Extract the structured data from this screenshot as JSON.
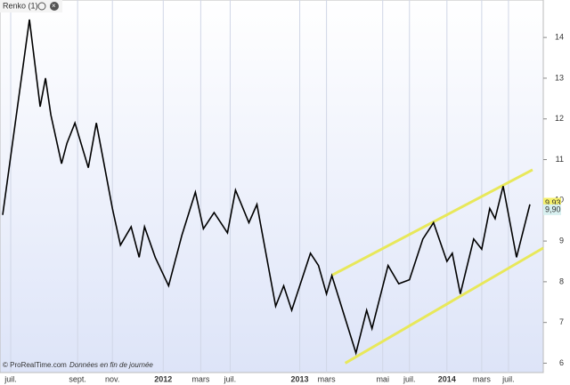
{
  "chart_data": {
    "type": "line",
    "title": "Renko (1)",
    "footer": "© ProRealTime.com",
    "footer_note": "Données en fin de journée",
    "series": [
      {
        "name": "Renko",
        "color": "#000000",
        "x": [
          1,
          11,
          15,
          17,
          19,
          23,
          25,
          28,
          33,
          36,
          42,
          45,
          49,
          52,
          54,
          58,
          63,
          68,
          73,
          76,
          80,
          85,
          88,
          93,
          96,
          103,
          106,
          109,
          116,
          119,
          122,
          124,
          133,
          137,
          139,
          145,
          149,
          153,
          158,
          162,
          167,
          169,
          172,
          177,
          180,
          183,
          185,
          188,
          193,
          198
        ],
        "values": [
          9.64,
          14.44,
          12.3,
          13.0,
          12.1,
          10.9,
          11.4,
          11.9,
          10.8,
          11.9,
          9.8,
          8.9,
          9.35,
          8.6,
          9.35,
          8.6,
          7.9,
          9.15,
          10.2,
          9.3,
          9.7,
          9.2,
          10.25,
          9.45,
          9.9,
          7.4,
          7.9,
          7.3,
          8.7,
          8.4,
          7.7,
          8.15,
          6.25,
          7.3,
          6.85,
          8.4,
          7.95,
          8.05,
          9.05,
          9.45,
          8.5,
          8.7,
          7.7,
          9.05,
          8.8,
          9.8,
          9.55,
          10.35,
          8.6,
          9.9
        ]
      }
    ],
    "trendlines": [
      {
        "color": "#e8e85a",
        "x": [
          124,
          199
        ],
        "values": [
          8.16,
          10.75
        ]
      },
      {
        "color": "#e8e85a",
        "x": [
          129,
          203
        ],
        "values": [
          6.0,
          8.83
        ]
      }
    ],
    "last_price_labels": [
      {
        "value": 9.93,
        "label": "9,93",
        "color": "#f5f06a"
      },
      {
        "value": 9.9,
        "label": "9,90",
        "color": "#d8f0f0"
      }
    ],
    "xlim": [
      0,
      203
    ],
    "ylim": [
      5.77,
      14.92
    ],
    "xticks": [
      {
        "value": 4,
        "label": "juil."
      },
      {
        "value": 29,
        "label": "sept."
      },
      {
        "value": 42,
        "label": "nov."
      },
      {
        "value": 61,
        "label": "2012"
      },
      {
        "value": 75,
        "label": "mars"
      },
      {
        "value": 86,
        "label": "juil."
      },
      {
        "value": 112,
        "label": "2013"
      },
      {
        "value": 122,
        "label": "mars"
      },
      {
        "value": 143,
        "label": "mai"
      },
      {
        "value": 153,
        "label": "juil."
      },
      {
        "value": 167,
        "label": "2014"
      },
      {
        "value": 180,
        "label": "mars"
      },
      {
        "value": 190,
        "label": "juil."
      }
    ],
    "yticks": [
      6,
      7,
      8,
      9,
      10,
      11,
      12,
      13,
      14
    ],
    "grid": true
  }
}
